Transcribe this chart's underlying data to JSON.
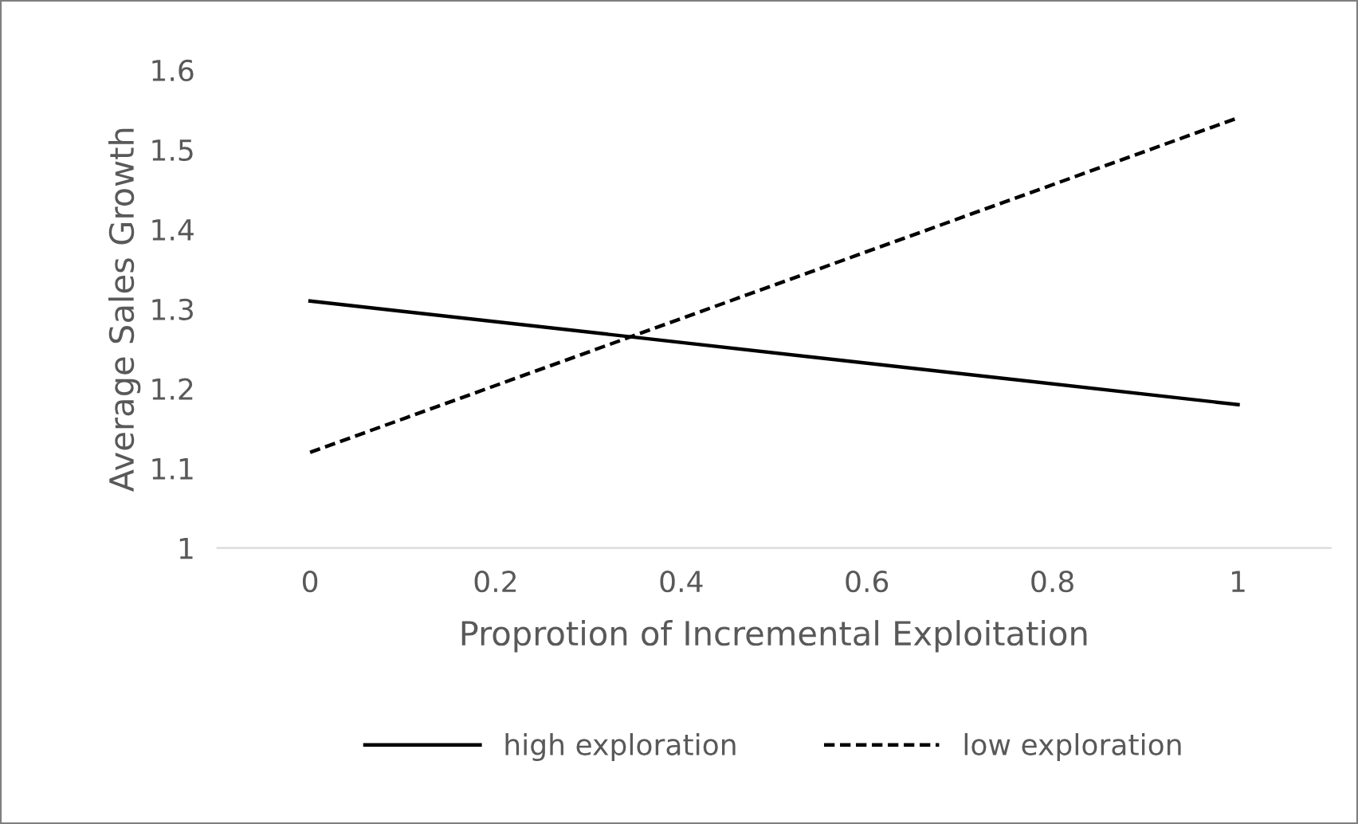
{
  "chart_data": {
    "type": "line",
    "xlabel": "Proprotion of Incremental Exploitation",
    "ylabel": "Average Sales Growth",
    "x": [
      0,
      1
    ],
    "series": [
      {
        "name": "high exploration",
        "color": "#000000",
        "values": [
          1.31,
          1.18
        ],
        "line_style": "solid"
      },
      {
        "name": "low exploration",
        "color": "#000000",
        "values": [
          1.12,
          1.54
        ],
        "line_style": "dashed"
      }
    ],
    "xlim": [
      -0.1,
      1.1
    ],
    "xticks": [
      0,
      0.2,
      0.4,
      0.6,
      0.8,
      1
    ],
    "ylim": [
      1,
      1.6
    ],
    "yticks": [
      1,
      1.1,
      1.2,
      1.3,
      1.4,
      1.5,
      1.6
    ],
    "grid": false,
    "legend": "bottom",
    "marker": "none"
  }
}
